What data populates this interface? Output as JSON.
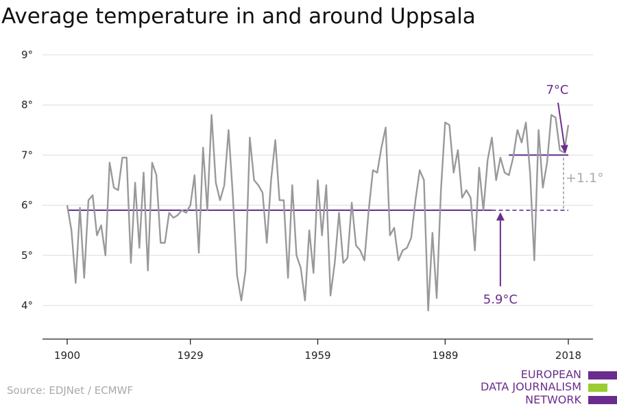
{
  "title": "Average temperature in and around Uppsala",
  "source": "Source: EDJNet / ECMWF",
  "logo": {
    "lines": [
      "EUROPEAN",
      "DATA JOURNALISM",
      "NETWORK"
    ],
    "colors": [
      "#6a2c8d",
      "#9acd32",
      "#6a2c8d"
    ]
  },
  "chart_data": {
    "type": "line",
    "x_ticks": [
      1900,
      1929,
      1959,
      1989,
      2018
    ],
    "y_ticks": [
      4,
      5,
      6,
      7,
      8,
      9
    ],
    "y_tick_labels": [
      "4°",
      "5°",
      "6°",
      "7°",
      "8°",
      "9°"
    ],
    "xlim": [
      1900,
      2018
    ],
    "ylim": [
      3.5,
      9
    ],
    "grid": "horizontal",
    "series": [
      {
        "color": "#999999",
        "x": [
          1900,
          1901,
          1902,
          1903,
          1904,
          1905,
          1906,
          1907,
          1908,
          1909,
          1910,
          1911,
          1912,
          1913,
          1914,
          1915,
          1916,
          1917,
          1918,
          1919,
          1920,
          1921,
          1922,
          1923,
          1924,
          1925,
          1926,
          1927,
          1928,
          1929,
          1930,
          1931,
          1932,
          1933,
          1934,
          1935,
          1936,
          1937,
          1938,
          1939,
          1940,
          1941,
          1942,
          1943,
          1944,
          1945,
          1946,
          1947,
          1948,
          1949,
          1950,
          1951,
          1952,
          1953,
          1954,
          1955,
          1956,
          1957,
          1958,
          1959,
          1960,
          1961,
          1962,
          1963,
          1964,
          1965,
          1966,
          1967,
          1968,
          1969,
          1970,
          1971,
          1972,
          1973,
          1974,
          1975,
          1976,
          1977,
          1978,
          1979,
          1980,
          1981,
          1982,
          1983,
          1984,
          1985,
          1986,
          1987,
          1988,
          1989,
          1990,
          1991,
          1992,
          1993,
          1994,
          1995,
          1996,
          1997,
          1998,
          1999,
          2000,
          2001,
          2002,
          2003,
          2004,
          2005,
          2006,
          2007,
          2008,
          2009,
          2010,
          2011,
          2012,
          2013,
          2014,
          2015,
          2016,
          2017,
          2018
        ],
        "values": [
          6.0,
          5.5,
          4.45,
          5.95,
          4.55,
          6.1,
          6.2,
          5.4,
          5.6,
          5.0,
          6.85,
          6.35,
          6.3,
          6.95,
          6.95,
          4.85,
          6.45,
          5.15,
          6.65,
          4.7,
          6.85,
          6.6,
          5.25,
          5.25,
          5.85,
          5.75,
          5.8,
          5.9,
          5.85,
          6.0,
          6.6,
          5.05,
          7.15,
          5.9,
          7.8,
          6.45,
          6.1,
          6.4,
          7.5,
          6.2,
          4.6,
          4.1,
          4.7,
          7.35,
          6.5,
          6.4,
          6.25,
          5.25,
          6.5,
          7.3,
          6.1,
          6.1,
          4.55,
          6.4,
          5.0,
          4.75,
          4.1,
          5.5,
          4.65,
          6.5,
          5.4,
          6.4,
          4.2,
          4.85,
          5.85,
          4.85,
          4.95,
          6.05,
          5.2,
          5.1,
          4.9,
          5.9,
          6.7,
          6.65,
          7.15,
          7.55,
          5.4,
          5.55,
          4.9,
          5.1,
          5.15,
          5.35,
          6.1,
          6.7,
          6.5,
          3.9,
          5.45,
          4.15,
          6.3,
          7.65,
          7.6,
          6.65,
          7.1,
          6.15,
          6.3,
          6.15,
          5.1,
          6.75,
          5.9,
          6.9,
          7.35,
          6.5,
          6.95,
          6.65,
          6.6,
          6.95,
          7.5,
          7.25,
          7.65,
          6.65,
          4.9,
          7.5,
          6.35,
          6.85,
          7.8,
          7.75,
          7.1,
          7.05,
          7.6
        ]
      }
    ],
    "reference_lines": [
      {
        "label": "5.9°C",
        "value": 5.9,
        "from": 1900,
        "to": 2018,
        "color": "#5e2b8c"
      },
      {
        "label": "7°C",
        "value": 7.0,
        "from": 2004,
        "to": 2018,
        "color": "#5e2b8c"
      }
    ],
    "difference_label": "+1.1°"
  }
}
